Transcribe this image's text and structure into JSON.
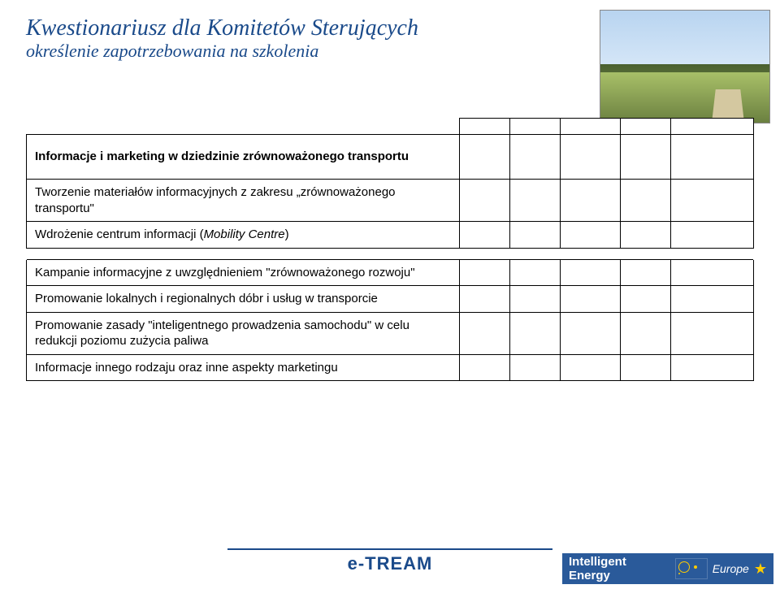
{
  "header": {
    "title": "Kwestionariusz dla Komitetów Sterujących",
    "subtitle": "określenie zapotrzebowania na szkolenia"
  },
  "table": {
    "section_header": "Informacje i marketing w dziedzinie zrównoważonego transportu",
    "rows_group1": [
      "Tworzenie materiałów informacyjnych z zakresu „zrównoważonego transportu\"",
      "Wdrożenie centrum informacji (Mobility Centre)"
    ],
    "rows_group2": [
      "Kampanie informacyjne z uwzględnieniem \"zrównoważonego rozwoju\"",
      "Promowanie lokalnych i regionalnych dóbr i usług w transporcie",
      "Promowanie zasady \"inteligentnego prowadzenia samochodu\" w celu redukcji poziomu zużycia paliwa",
      "Informacje innego rodzaju oraz inne aspekty marketingu"
    ],
    "col_count": 5
  },
  "footer": {
    "brand": "e-TREAM",
    "badge_text": "Intelligent Energy",
    "badge_region": "Europe"
  },
  "colors": {
    "heading": "#1a4a8a",
    "badge_bg": "#2a5a9a",
    "badge_star": "#ffcc00"
  }
}
